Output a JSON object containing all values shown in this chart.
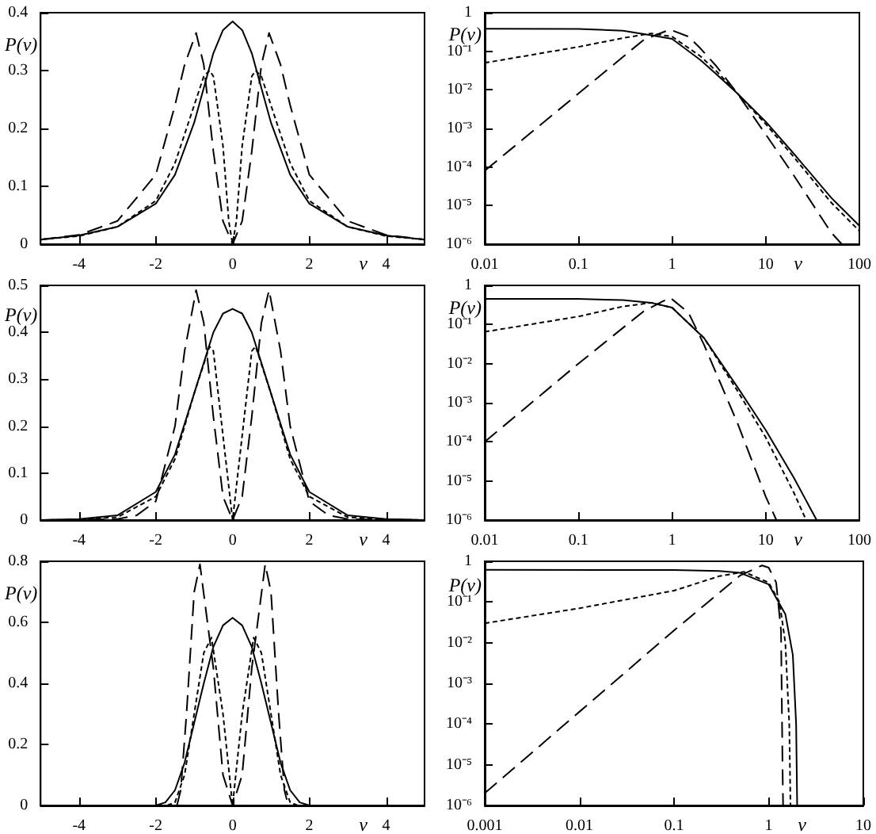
{
  "chart_data": [
    {
      "type": "line",
      "xlabel": "v",
      "ylabel": "P(v)",
      "xlim": [
        -5,
        5
      ],
      "ylim": [
        0,
        0.4
      ],
      "xticks": [
        -4,
        -2,
        0,
        2,
        4
      ],
      "yticks": [
        0,
        0.1,
        0.2,
        0.3,
        0.4
      ],
      "grid": false,
      "marker": "none",
      "series": [
        {
          "color": "#000000",
          "line_style": "solid",
          "x": [
            -5,
            -4,
            -3,
            -2,
            -1.5,
            -1,
            -0.75,
            -0.5,
            -0.25,
            0,
            0.25,
            0.5,
            0.75,
            1,
            1.5,
            2,
            3,
            4,
            5
          ],
          "values": [
            0.008,
            0.015,
            0.03,
            0.07,
            0.12,
            0.21,
            0.27,
            0.33,
            0.37,
            0.385,
            0.37,
            0.33,
            0.27,
            0.21,
            0.12,
            0.07,
            0.03,
            0.015,
            0.008
          ]
        },
        {
          "color": "#000000",
          "line_style": "dotted",
          "x": [
            -5,
            -4,
            -3,
            -2,
            -1.5,
            -1,
            -0.75,
            -0.6,
            -0.5,
            -0.25,
            -0.1,
            0,
            0.1,
            0.25,
            0.5,
            0.6,
            0.75,
            1,
            1.5,
            2,
            3,
            4,
            5
          ],
          "values": [
            0.008,
            0.014,
            0.03,
            0.075,
            0.14,
            0.24,
            0.29,
            0.3,
            0.29,
            0.17,
            0.04,
            0,
            0.04,
            0.17,
            0.29,
            0.3,
            0.29,
            0.24,
            0.14,
            0.075,
            0.03,
            0.014,
            0.008
          ]
        },
        {
          "color": "#000000",
          "line_style": "dashed",
          "x": [
            -5,
            -4,
            -3,
            -2,
            -1.5,
            -1.25,
            -0.95,
            -0.75,
            -0.5,
            -0.25,
            0,
            0.25,
            0.5,
            0.75,
            0.95,
            1.25,
            1.5,
            2,
            3,
            4,
            5
          ],
          "values": [
            0.008,
            0.016,
            0.04,
            0.12,
            0.24,
            0.31,
            0.365,
            0.31,
            0.16,
            0.04,
            0,
            0.04,
            0.16,
            0.31,
            0.365,
            0.31,
            0.24,
            0.12,
            0.04,
            0.016,
            0.008
          ]
        }
      ]
    },
    {
      "type": "line",
      "xlabel": "v",
      "ylabel": "P(v)",
      "log": "xy",
      "xlim": [
        0.01,
        100
      ],
      "ylim": [
        1e-06,
        1
      ],
      "xticks": [
        0.01,
        0.1,
        1,
        10,
        100
      ],
      "yticks": [
        {
          "value": 1e-06,
          "label": "10⁻⁶"
        },
        {
          "value": 1e-05,
          "label": "10⁻⁵"
        },
        {
          "value": 0.0001,
          "label": "10⁻⁴"
        },
        {
          "value": 0.001,
          "label": "10⁻³"
        },
        {
          "value": 0.01,
          "label": "10⁻²"
        },
        {
          "value": 0.1,
          "label": "10⁻¹"
        },
        1
      ],
      "grid": false,
      "marker": "none",
      "series": [
        {
          "color": "#000000",
          "line_style": "solid",
          "x": [
            0.01,
            0.1,
            0.3,
            0.6,
            1,
            2,
            3,
            5,
            10,
            20,
            50,
            100
          ],
          "values": [
            0.385,
            0.38,
            0.34,
            0.26,
            0.21,
            0.06,
            0.025,
            0.008,
            0.0015,
            0.00022,
            1.6e-05,
            3e-06
          ]
        },
        {
          "color": "#000000",
          "line_style": "dotted",
          "x": [
            0.01,
            0.1,
            0.3,
            0.6,
            1,
            2,
            3,
            5,
            10,
            20,
            50,
            100
          ],
          "values": [
            0.05,
            0.13,
            0.22,
            0.29,
            0.24,
            0.075,
            0.03,
            0.008,
            0.0013,
            0.00018,
            1.2e-05,
            2.2e-06
          ]
        },
        {
          "color": "#000000",
          "line_style": "dashed",
          "x": [
            0.01,
            0.1,
            0.5,
            0.95,
            1.5,
            2,
            3,
            5,
            10,
            20,
            50,
            65
          ],
          "values": [
            8e-05,
            0.008,
            0.2,
            0.365,
            0.24,
            0.12,
            0.04,
            0.008,
            0.0007,
            6e-05,
            2e-06,
            1e-06
          ]
        }
      ]
    },
    {
      "type": "line",
      "xlabel": "v",
      "ylabel": "P(v)",
      "xlim": [
        -5,
        5
      ],
      "ylim": [
        0,
        0.5
      ],
      "xticks": [
        -4,
        -2,
        0,
        2,
        4
      ],
      "yticks": [
        0,
        0.1,
        0.2,
        0.3,
        0.4,
        0.5
      ],
      "grid": false,
      "marker": "none",
      "series": [
        {
          "color": "#000000",
          "line_style": "solid",
          "x": [
            -5,
            -4,
            -3,
            -2,
            -1.5,
            -1,
            -0.5,
            -0.25,
            0,
            0.25,
            0.5,
            1,
            1.5,
            2,
            3,
            4,
            5
          ],
          "values": [
            0,
            0.002,
            0.01,
            0.06,
            0.14,
            0.27,
            0.4,
            0.44,
            0.45,
            0.44,
            0.4,
            0.27,
            0.14,
            0.06,
            0.01,
            0.002,
            0
          ]
        },
        {
          "color": "#000000",
          "line_style": "dotted",
          "x": [
            -5,
            -4,
            -3,
            -2,
            -1.5,
            -1,
            -0.6,
            -0.5,
            -0.25,
            0,
            0.25,
            0.5,
            0.6,
            1,
            1.5,
            2,
            3,
            4,
            5
          ],
          "values": [
            0,
            0.001,
            0.006,
            0.05,
            0.13,
            0.27,
            0.37,
            0.36,
            0.18,
            0,
            0.18,
            0.36,
            0.37,
            0.27,
            0.13,
            0.05,
            0.006,
            0.001,
            0
          ]
        },
        {
          "color": "#000000",
          "line_style": "dashed",
          "x": [
            -5,
            -3,
            -2.5,
            -2,
            -1.5,
            -1.25,
            -0.95,
            -0.75,
            -0.5,
            -0.25,
            0,
            0.25,
            0.5,
            0.75,
            0.95,
            1.25,
            1.5,
            2,
            2.5,
            3,
            5
          ],
          "values": [
            0,
            0.002,
            0.01,
            0.04,
            0.2,
            0.36,
            0.49,
            0.42,
            0.22,
            0.05,
            0,
            0.05,
            0.22,
            0.42,
            0.49,
            0.36,
            0.2,
            0.04,
            0.01,
            0.002,
            0
          ]
        }
      ]
    },
    {
      "type": "line",
      "xlabel": "v",
      "ylabel": "P(v)",
      "log": "xy",
      "xlim": [
        0.01,
        100
      ],
      "ylim": [
        1e-06,
        1
      ],
      "xticks": [
        0.01,
        0.1,
        1,
        10,
        100
      ],
      "yticks": [
        {
          "value": 1e-06,
          "label": "10⁻⁶"
        },
        {
          "value": 1e-05,
          "label": "10⁻⁵"
        },
        {
          "value": 0.0001,
          "label": "10⁻⁴"
        },
        {
          "value": 0.001,
          "label": "10⁻³"
        },
        {
          "value": 0.01,
          "label": "10⁻²"
        },
        {
          "value": 0.1,
          "label": "10⁻¹"
        },
        1
      ],
      "grid": false,
      "marker": "none",
      "series": [
        {
          "color": "#000000",
          "line_style": "solid",
          "x": [
            0.01,
            0.1,
            0.3,
            0.6,
            1,
            2.2,
            5,
            10,
            20,
            35
          ],
          "values": [
            0.45,
            0.45,
            0.42,
            0.36,
            0.27,
            0.045,
            0.0025,
            0.0002,
            1.2e-05,
            1e-06
          ]
        },
        {
          "color": "#000000",
          "line_style": "dotted",
          "x": [
            0.01,
            0.1,
            0.3,
            0.6,
            1,
            2.2,
            5,
            10,
            20,
            27
          ],
          "values": [
            0.065,
            0.16,
            0.29,
            0.36,
            0.27,
            0.045,
            0.002,
            0.00013,
            5e-06,
            1e-06
          ]
        },
        {
          "color": "#000000",
          "line_style": "dashed",
          "x": [
            0.01,
            0.1,
            0.5,
            0.95,
            1.5,
            2.2,
            5,
            10,
            13
          ],
          "values": [
            0.0001,
            0.01,
            0.22,
            0.49,
            0.2,
            0.03,
            0.0003,
            4e-06,
            1e-06
          ]
        }
      ]
    },
    {
      "type": "line",
      "xlabel": "v",
      "ylabel": "P(v)",
      "xlim": [
        -5,
        5
      ],
      "ylim": [
        0,
        0.8
      ],
      "xticks": [
        -4,
        -2,
        0,
        2,
        4
      ],
      "yticks": [
        0,
        0.2,
        0.4,
        0.6,
        0.8
      ],
      "grid": false,
      "marker": "none",
      "series": [
        {
          "color": "#000000",
          "line_style": "solid",
          "x": [
            -2,
            -1.75,
            -1.5,
            -1.25,
            -1,
            -0.75,
            -0.5,
            -0.25,
            0,
            0.25,
            0.5,
            0.75,
            1,
            1.25,
            1.5,
            1.75,
            2
          ],
          "values": [
            0,
            0.01,
            0.05,
            0.14,
            0.27,
            0.4,
            0.52,
            0.59,
            0.615,
            0.59,
            0.52,
            0.4,
            0.27,
            0.14,
            0.05,
            0.01,
            0
          ]
        },
        {
          "color": "#000000",
          "line_style": "dotted",
          "x": [
            -1.7,
            -1.5,
            -1.25,
            -1,
            -0.75,
            -0.55,
            -0.25,
            0,
            0.25,
            0.55,
            0.75,
            1,
            1.25,
            1.5,
            1.7
          ],
          "values": [
            0,
            0.01,
            0.1,
            0.3,
            0.5,
            0.55,
            0.3,
            0,
            0.3,
            0.55,
            0.5,
            0.3,
            0.1,
            0.01,
            0
          ]
        },
        {
          "color": "#000000",
          "line_style": "dashed",
          "x": [
            -1.45,
            -1.35,
            -1.2,
            -1,
            -0.85,
            -0.5,
            -0.25,
            0,
            0.25,
            0.5,
            0.85,
            1,
            1.2,
            1.35,
            1.45
          ],
          "values": [
            0,
            0.05,
            0.3,
            0.7,
            0.79,
            0.45,
            0.1,
            0,
            0.1,
            0.45,
            0.79,
            0.7,
            0.3,
            0.05,
            0
          ]
        }
      ]
    },
    {
      "type": "line",
      "xlabel": "v",
      "ylabel": "P(v)",
      "log": "xy",
      "xlim": [
        0.001,
        10
      ],
      "ylim": [
        1e-06,
        1
      ],
      "xticks": [
        0.001,
        0.01,
        0.1,
        1,
        10
      ],
      "yticks": [
        {
          "value": 1e-06,
          "label": "10⁻⁶"
        },
        {
          "value": 1e-05,
          "label": "10⁻⁵"
        },
        {
          "value": 0.0001,
          "label": "10⁻⁴"
        },
        {
          "value": 0.001,
          "label": "10⁻³"
        },
        {
          "value": 0.01,
          "label": "10⁻²"
        },
        {
          "value": 0.1,
          "label": "10⁻¹"
        },
        1
      ],
      "grid": false,
      "marker": "none",
      "series": [
        {
          "color": "#000000",
          "line_style": "solid",
          "x": [
            0.001,
            0.1,
            0.3,
            0.5,
            1,
            1.5,
            1.8,
            1.95,
            2
          ],
          "values": [
            0.615,
            0.61,
            0.58,
            0.52,
            0.27,
            0.05,
            0.005,
            0.0001,
            1e-06
          ]
        },
        {
          "color": "#000000",
          "line_style": "dotted",
          "x": [
            0.001,
            0.01,
            0.1,
            0.3,
            0.55,
            1,
            1.3,
            1.5,
            1.65,
            1.7
          ],
          "values": [
            0.03,
            0.07,
            0.19,
            0.43,
            0.55,
            0.3,
            0.1,
            0.01,
            0.0001,
            1e-06
          ]
        },
        {
          "color": "#000000",
          "line_style": "dashed",
          "x": [
            0.001,
            0.01,
            0.1,
            0.5,
            0.85,
            1,
            1.2,
            1.35,
            1.4,
            1.42
          ],
          "values": [
            2e-06,
            0.0002,
            0.02,
            0.45,
            0.79,
            0.7,
            0.3,
            0.02,
            1e-05,
            1e-06
          ]
        }
      ]
    }
  ]
}
